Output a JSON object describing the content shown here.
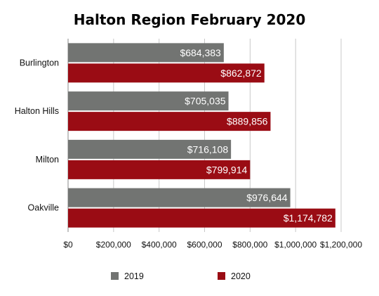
{
  "chart_data": {
    "type": "bar",
    "orientation": "horizontal",
    "title": "Halton Region February 2020",
    "categories": [
      "Burlington",
      "Halton Hills",
      "Milton",
      "Oakville"
    ],
    "series": [
      {
        "name": "2019",
        "color": "#727472",
        "values": [
          684383,
          705035,
          716108,
          976644
        ],
        "labels": [
          "$684,383",
          "$705,035",
          "$716,108",
          "$976,644"
        ]
      },
      {
        "name": "2020",
        "color": "#9a0c14",
        "values": [
          862872,
          889856,
          799914,
          1174782
        ],
        "labels": [
          "$862,872",
          "$889,856",
          "$799,914",
          "$1,174,782"
        ]
      }
    ],
    "xlim": [
      0,
      1200000
    ],
    "xticks": [
      0,
      200000,
      400000,
      600000,
      800000,
      1000000,
      1200000
    ],
    "xtick_labels": [
      "$0",
      "$200,000",
      "$400,000",
      "$600,000",
      "$800,000",
      "$1,000,000",
      "$1,200,000"
    ],
    "grid": "vertical",
    "legend_position": "bottom"
  }
}
